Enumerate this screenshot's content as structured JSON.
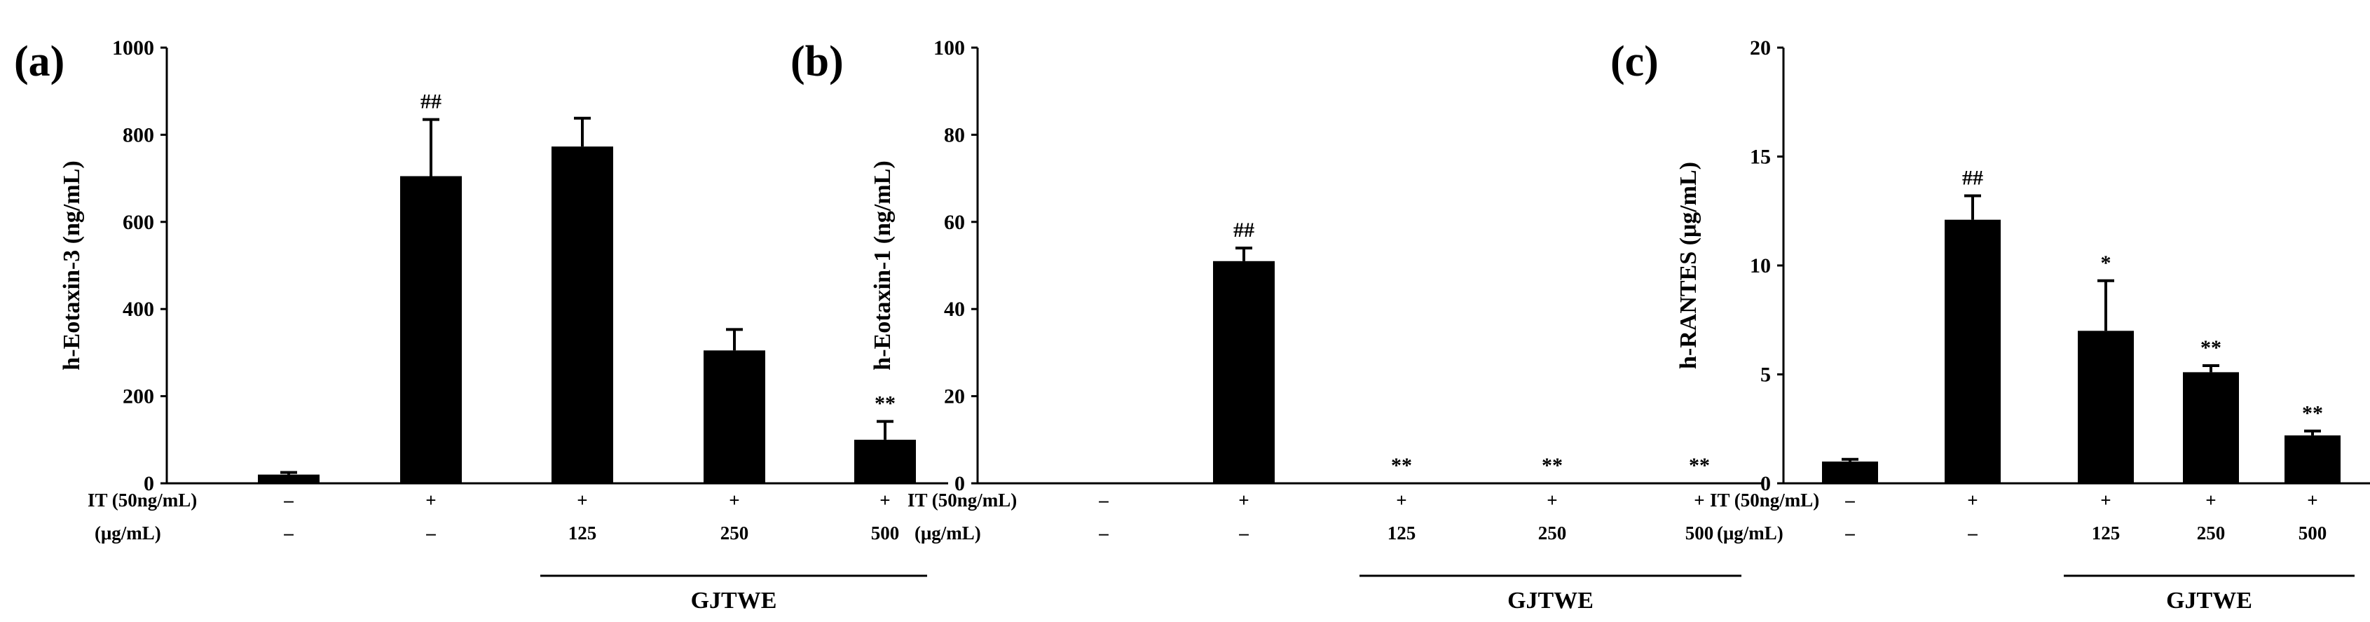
{
  "condition_labels": {
    "row1": "IT (50ng/mL)",
    "row2": "(μg/mL)"
  },
  "group_label": "GJTWE",
  "chart_data": [
    {
      "type": "bar",
      "panel": "(a)",
      "ylabel": "h-Eotaxin-3 (ng/mL)",
      "ylim": [
        0,
        1000
      ],
      "yticks": [
        "0",
        "200",
        "400",
        "600",
        "800",
        "1000"
      ],
      "groups": [
        {
          "it": "–",
          "dose": "–",
          "value": 20,
          "error": 5,
          "sig": ""
        },
        {
          "it": "+",
          "dose": "–",
          "value": 705,
          "error": 130,
          "sig": "##"
        },
        {
          "it": "+",
          "dose": "125",
          "value": 773,
          "error": 65,
          "sig": ""
        },
        {
          "it": "+",
          "dose": "250",
          "value": 305,
          "error": 48,
          "sig": ""
        },
        {
          "it": "+",
          "dose": "500",
          "value": 100,
          "error": 42,
          "sig": "**"
        }
      ]
    },
    {
      "type": "bar",
      "panel": "(b)",
      "ylabel": "h-Eotaxin-1 (ng/mL)",
      "ylim": [
        0,
        100
      ],
      "yticks": [
        "0",
        "20",
        "40",
        "60",
        "80",
        "100"
      ],
      "groups": [
        {
          "it": "–",
          "dose": "–",
          "value": 0,
          "error": 0,
          "sig": ""
        },
        {
          "it": "+",
          "dose": "–",
          "value": 51,
          "error": 3,
          "sig": "##"
        },
        {
          "it": "+",
          "dose": "125",
          "value": 0,
          "error": 0,
          "sig": "**"
        },
        {
          "it": "+",
          "dose": "250",
          "value": 0,
          "error": 0,
          "sig": "**"
        },
        {
          "it": "+",
          "dose": "500",
          "value": 0,
          "error": 0,
          "sig": "**"
        }
      ]
    },
    {
      "type": "bar",
      "panel": "(c)",
      "ylabel": "h-RANTES (μg/mL)",
      "ylim": [
        0,
        20
      ],
      "yticks": [
        "0",
        "5",
        "10",
        "15",
        "20"
      ],
      "groups": [
        {
          "it": "–",
          "dose": "–",
          "value": 1.0,
          "error": 0.1,
          "sig": ""
        },
        {
          "it": "+",
          "dose": "–",
          "value": 12.1,
          "error": 1.1,
          "sig": "##"
        },
        {
          "it": "+",
          "dose": "125",
          "value": 7.0,
          "error": 2.3,
          "sig": "*"
        },
        {
          "it": "+",
          "dose": "250",
          "value": 5.1,
          "error": 0.3,
          "sig": "**"
        },
        {
          "it": "+",
          "dose": "500",
          "value": 2.2,
          "error": 0.2,
          "sig": "**"
        }
      ]
    }
  ]
}
